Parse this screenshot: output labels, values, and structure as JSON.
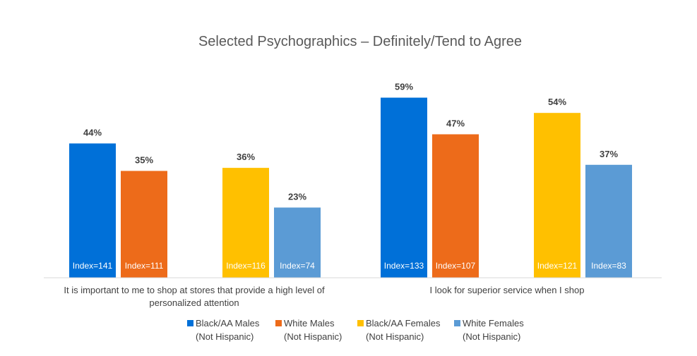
{
  "chart_data": {
    "type": "bar",
    "title": "Selected Psychographics – Definitely/Tend to Agree",
    "ylim": [
      0,
      60
    ],
    "grid": false,
    "legend_position": "bottom",
    "categories": [
      [
        "It is important to me to shop at stores that provide a high level of",
        "personalized attention"
      ],
      [
        "I look for superior service when I shop"
      ]
    ],
    "series": [
      {
        "name": [
          "Black/AA Males",
          "(Not Hispanic)"
        ],
        "color": "#0070d8",
        "values": [
          44,
          59
        ],
        "value_labels": [
          "44%",
          "59%"
        ],
        "index_labels": [
          "Index=141",
          "Index=133"
        ]
      },
      {
        "name": [
          "White Males",
          "(Not Hispanic)"
        ],
        "color": "#ed6b1a",
        "values": [
          35,
          47
        ],
        "value_labels": [
          "35%",
          "47%"
        ],
        "index_labels": [
          "Index=111",
          "Index=107"
        ]
      },
      {
        "name": [
          "Black/AA Females",
          "(Not Hispanic)"
        ],
        "color": "#ffc000",
        "values": [
          36,
          54
        ],
        "value_labels": [
          "36%",
          "54%"
        ],
        "index_labels": [
          "Index=116",
          "Index=121"
        ]
      },
      {
        "name": [
          "White Females",
          "(Not Hispanic)"
        ],
        "color": "#5b9bd5",
        "values": [
          23,
          37
        ],
        "value_labels": [
          "23%",
          "37%"
        ],
        "index_labels": [
          "Index=74",
          "Index=83"
        ]
      }
    ],
    "axis_color": "#d9d9d9"
  }
}
